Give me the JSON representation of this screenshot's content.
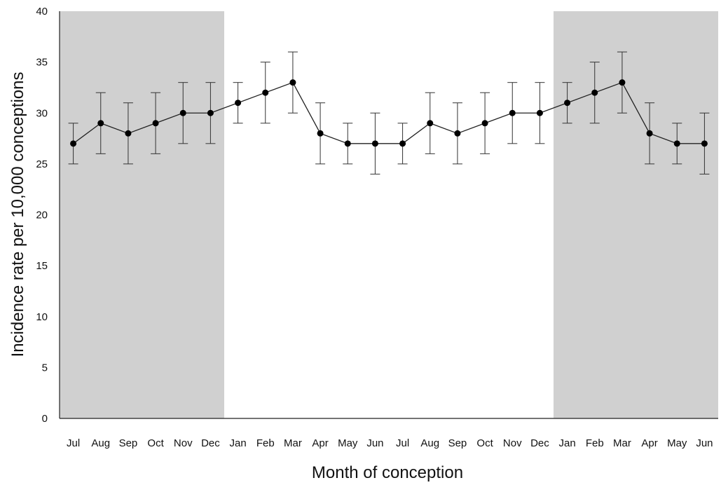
{
  "chart_data": {
    "type": "line",
    "title": "",
    "xlabel": "Month of conception",
    "ylabel": "Incidence rate per 10,000 conceptions",
    "ylim": [
      0,
      40
    ],
    "yticks": [
      0,
      5,
      10,
      15,
      20,
      25,
      30,
      35,
      40
    ],
    "grid": false,
    "categories": [
      "Jul",
      "Aug",
      "Sep",
      "Oct",
      "Nov",
      "Dec",
      "Jan",
      "Feb",
      "Mar",
      "Apr",
      "May",
      "Jun",
      "Jul",
      "Aug",
      "Sep",
      "Oct",
      "Nov",
      "Dec",
      "Jan",
      "Feb",
      "Mar",
      "Apr",
      "May",
      "Jun"
    ],
    "series": [
      {
        "values": [
          27,
          29,
          28,
          29,
          30,
          30,
          31,
          32,
          33,
          28,
          27,
          27,
          27,
          29,
          28,
          29,
          30,
          30,
          31,
          32,
          33,
          28,
          27,
          27
        ],
        "lower": [
          25,
          26,
          25,
          26,
          27,
          27,
          29,
          29,
          30,
          25,
          25,
          24,
          25,
          26,
          25,
          26,
          27,
          27,
          29,
          29,
          30,
          25,
          25,
          24
        ],
        "upper": [
          29,
          32,
          31,
          32,
          33,
          33,
          33,
          35,
          36,
          31,
          29,
          30,
          29,
          32,
          31,
          32,
          33,
          33,
          33,
          35,
          36,
          31,
          29,
          30
        ]
      }
    ],
    "shaded_category_ranges": [
      [
        0,
        5
      ],
      [
        18,
        23
      ]
    ],
    "colors": {
      "shade": "#d0d0d0",
      "line": "#222222",
      "marker": "#000000"
    }
  }
}
